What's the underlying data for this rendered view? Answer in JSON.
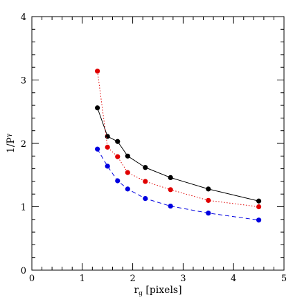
{
  "chart_data": {
    "type": "line",
    "title": "",
    "xlabel_main": "r",
    "xlabel_sub": "g",
    "xlabel_rest": " [pixels]",
    "ylabel_main": "1/P",
    "ylabel_sup": "γ",
    "xlim": [
      0,
      5
    ],
    "ylim": [
      0,
      4
    ],
    "x_major_ticks": [
      0,
      1,
      2,
      3,
      4,
      5
    ],
    "y_major_ticks": [
      0,
      1,
      2,
      3,
      4
    ],
    "x_minor_step": 0.2,
    "y_minor_step": 0.2,
    "grid": false,
    "series": [
      {
        "color": "#000000",
        "line_style": "solid",
        "points": [
          [
            1.3,
            2.56
          ],
          [
            1.5,
            2.11
          ],
          [
            1.7,
            2.03
          ],
          [
            1.9,
            1.8
          ],
          [
            2.25,
            1.62
          ],
          [
            2.75,
            1.46
          ],
          [
            3.5,
            1.28
          ],
          [
            4.5,
            1.09
          ]
        ]
      },
      {
        "color": "#e00000",
        "line_style": "dotted",
        "points": [
          [
            1.3,
            3.14
          ],
          [
            1.5,
            1.94
          ],
          [
            1.7,
            1.79
          ],
          [
            1.9,
            1.54
          ],
          [
            2.25,
            1.4
          ],
          [
            2.75,
            1.27
          ],
          [
            3.5,
            1.1
          ],
          [
            4.5,
            1.0
          ]
        ]
      },
      {
        "color": "#0000e0",
        "line_style": "dashed",
        "points": [
          [
            1.3,
            1.91
          ],
          [
            1.5,
            1.64
          ],
          [
            1.7,
            1.41
          ],
          [
            1.9,
            1.28
          ],
          [
            2.25,
            1.13
          ],
          [
            2.75,
            1.01
          ],
          [
            3.5,
            0.9
          ],
          [
            4.5,
            0.79
          ]
        ]
      }
    ]
  }
}
